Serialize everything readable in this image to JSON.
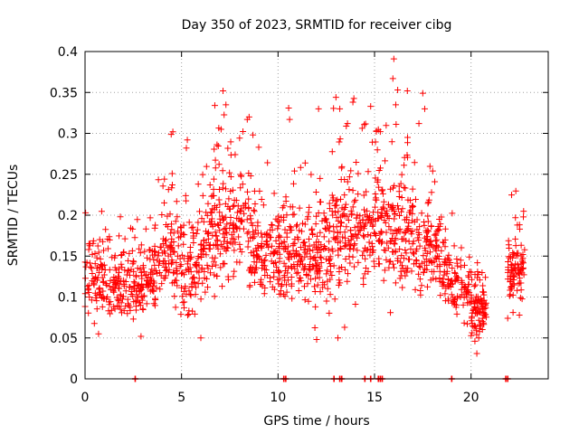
{
  "chart_data": {
    "type": "scatter",
    "title": "Day 350 of 2023, SRMTID for receiver cibg",
    "xlabel": "GPS time / hours",
    "ylabel": "SRMTID / TECUs",
    "xlim": [
      0,
      24.0
    ],
    "ylim": [
      0,
      0.4
    ],
    "x_ticks": [
      0,
      5,
      10,
      15,
      20
    ],
    "x_tick_labels": [
      "0",
      "5",
      "10",
      "15",
      "20"
    ],
    "y_ticks": [
      0,
      0.05,
      0.1,
      0.15,
      0.2,
      0.25,
      0.3,
      0.35,
      0.4
    ],
    "y_tick_labels": [
      "0",
      "0.05",
      "0.1",
      "0.15",
      "0.2",
      "0.25",
      "0.3",
      "0.35",
      "0.4"
    ],
    "grid": true,
    "marker": "+",
    "color": "#ff0000",
    "series": [
      {
        "name": "SRMTID",
        "segments": [
          {
            "x_start": 0.0,
            "x_end": 2.5,
            "level_start": 0.12,
            "level_end": 0.12,
            "spread": 0.035,
            "count": 180
          },
          {
            "x_start": 2.5,
            "x_end": 3.6,
            "level_start": 0.11,
            "level_end": 0.12,
            "spread": 0.03,
            "count": 90
          },
          {
            "x_start": 3.6,
            "x_end": 4.6,
            "level_start": 0.14,
            "level_end": 0.16,
            "spread": 0.04,
            "count": 80
          },
          {
            "x_start": 4.6,
            "x_end": 6.2,
            "level_start": 0.13,
            "level_end": 0.15,
            "spread": 0.045,
            "count": 130
          },
          {
            "x_start": 6.2,
            "x_end": 8.5,
            "level_start": 0.17,
            "level_end": 0.2,
            "spread": 0.05,
            "count": 190
          },
          {
            "x_start": 8.5,
            "x_end": 10.5,
            "level_start": 0.16,
            "level_end": 0.15,
            "spread": 0.045,
            "count": 170
          },
          {
            "x_start": 10.5,
            "x_end": 12.8,
            "level_start": 0.16,
            "level_end": 0.15,
            "spread": 0.05,
            "count": 190
          },
          {
            "x_start": 12.8,
            "x_end": 15.0,
            "level_start": 0.18,
            "level_end": 0.17,
            "spread": 0.055,
            "count": 180
          },
          {
            "x_start": 15.0,
            "x_end": 17.0,
            "level_start": 0.19,
            "level_end": 0.18,
            "spread": 0.055,
            "count": 180
          },
          {
            "x_start": 17.0,
            "x_end": 18.6,
            "level_start": 0.16,
            "level_end": 0.15,
            "spread": 0.045,
            "count": 120
          },
          {
            "x_start": 18.6,
            "x_end": 20.0,
            "level_start": 0.13,
            "level_end": 0.1,
            "spread": 0.03,
            "count": 100
          },
          {
            "x_start": 20.0,
            "x_end": 20.8,
            "level_start": 0.08,
            "level_end": 0.09,
            "spread": 0.025,
            "count": 90
          },
          {
            "x_start": 21.9,
            "x_end": 22.8,
            "level_start": 0.13,
            "level_end": 0.14,
            "spread": 0.035,
            "count": 90
          }
        ],
        "highlights": [
          {
            "x": 7.15,
            "y": 0.352
          },
          {
            "x": 7.3,
            "y": 0.335
          },
          {
            "x": 7.05,
            "y": 0.305
          },
          {
            "x": 4.55,
            "y": 0.302
          },
          {
            "x": 5.3,
            "y": 0.292
          },
          {
            "x": 5.25,
            "y": 0.282
          },
          {
            "x": 8.5,
            "y": 0.32
          },
          {
            "x": 8.7,
            "y": 0.298
          },
          {
            "x": 9.0,
            "y": 0.283
          },
          {
            "x": 10.55,
            "y": 0.331
          },
          {
            "x": 10.6,
            "y": 0.317
          },
          {
            "x": 12.1,
            "y": 0.33
          },
          {
            "x": 13.0,
            "y": 0.344
          },
          {
            "x": 13.2,
            "y": 0.33
          },
          {
            "x": 13.6,
            "y": 0.312
          },
          {
            "x": 14.8,
            "y": 0.333
          },
          {
            "x": 15.1,
            "y": 0.303
          },
          {
            "x": 16.0,
            "y": 0.391
          },
          {
            "x": 15.95,
            "y": 0.367
          },
          {
            "x": 16.2,
            "y": 0.353
          },
          {
            "x": 16.1,
            "y": 0.335
          },
          {
            "x": 16.7,
            "y": 0.352
          },
          {
            "x": 17.5,
            "y": 0.349
          },
          {
            "x": 17.6,
            "y": 0.33
          },
          {
            "x": 17.3,
            "y": 0.312
          },
          {
            "x": 20.3,
            "y": 0.031
          },
          {
            "x": 20.2,
            "y": 0.046
          },
          {
            "x": 2.9,
            "y": 0.052
          },
          {
            "x": 12.0,
            "y": 0.048
          },
          {
            "x": 13.1,
            "y": 0.05
          },
          {
            "x": 13.45,
            "y": 0.063
          },
          {
            "x": 6.0,
            "y": 0.05
          },
          {
            "x": 0.7,
            "y": 0.055
          },
          {
            "x": 22.3,
            "y": 0.197
          },
          {
            "x": 22.4,
            "y": 0.188
          },
          {
            "x": 21.9,
            "y": 0.074
          }
        ]
      }
    ],
    "zero_marks_x": [
      2.6,
      10.3,
      10.4,
      12.9,
      13.2,
      13.3,
      14.5,
      14.8,
      15.2,
      15.3,
      15.4,
      19.0,
      21.8,
      21.9
    ]
  }
}
